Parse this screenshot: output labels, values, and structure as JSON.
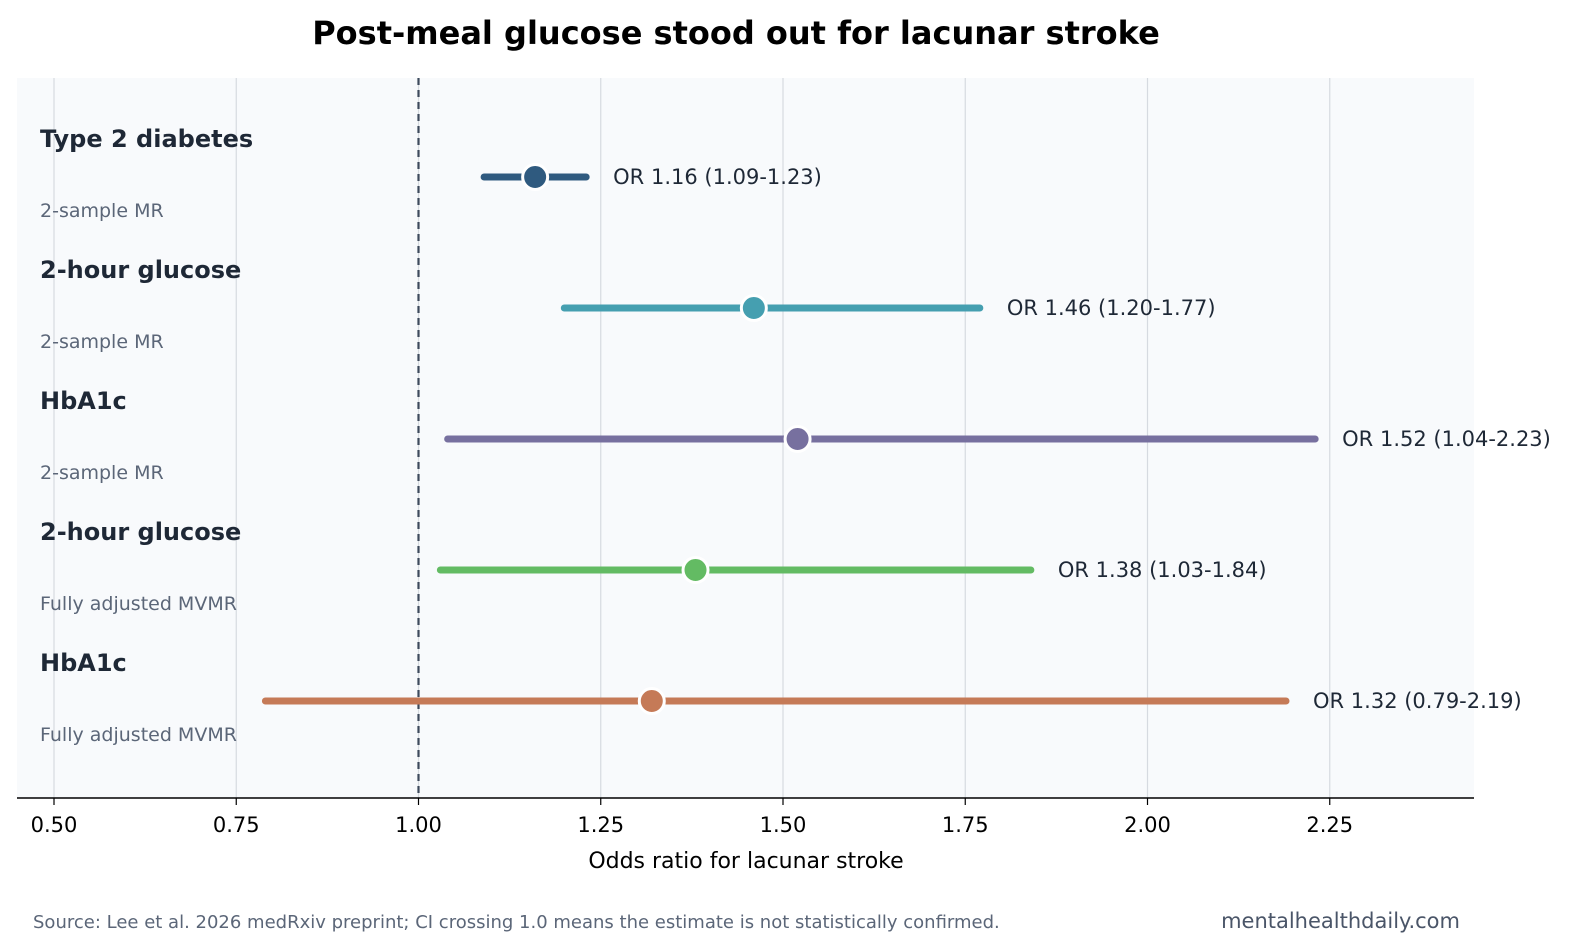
{
  "chart_data": {
    "type": "forest",
    "title": "Post-meal glucose stood out for lacunar stroke",
    "xlabel": "Odds ratio for lacunar stroke",
    "xlim": [
      0.45,
      2.45
    ],
    "xticks": [
      "0.50",
      "0.75",
      "1.00",
      "1.25",
      "1.50",
      "1.75",
      "2.00",
      "2.25"
    ],
    "reference_line": 1.0,
    "grid": "vertical",
    "rows": [
      {
        "exposure": "Type 2 diabetes",
        "method": "2-sample MR",
        "or": 1.16,
        "ci_low": 1.09,
        "ci_high": 1.23,
        "label": "OR 1.16 (1.09-1.23)",
        "color": "#2f5a7f"
      },
      {
        "exposure": "2-hour glucose",
        "method": "2-sample MR",
        "or": 1.46,
        "ci_low": 1.2,
        "ci_high": 1.77,
        "label": "OR 1.46 (1.20-1.77)",
        "color": "#459fb0"
      },
      {
        "exposure": "HbA1c",
        "method": "2-sample MR",
        "or": 1.52,
        "ci_low": 1.04,
        "ci_high": 2.23,
        "label": "OR 1.52 (1.04-2.23)",
        "color": "#77709f"
      },
      {
        "exposure": "2-hour glucose",
        "method": "Fully adjusted MVMR",
        "or": 1.38,
        "ci_low": 1.03,
        "ci_high": 1.84,
        "label": "OR 1.38 (1.03-1.84)",
        "color": "#63bb63"
      },
      {
        "exposure": "HbA1c",
        "method": "Fully adjusted MVMR",
        "or": 1.32,
        "ci_low": 0.79,
        "ci_high": 2.19,
        "label": "OR 1.32 (0.79-2.19)",
        "color": "#c57a57"
      }
    ]
  },
  "footer": {
    "source": "Source: Lee et al. 2026 medRxiv preprint; CI crossing 1.0 means the estimate is not statistically confirmed.",
    "brand": "mentalhealthdaily.com"
  },
  "colors": {
    "plot_background": "#f8fafc",
    "grid": "#d6dae0",
    "reference_line": "#3d4a5c",
    "axis": "#000000"
  }
}
